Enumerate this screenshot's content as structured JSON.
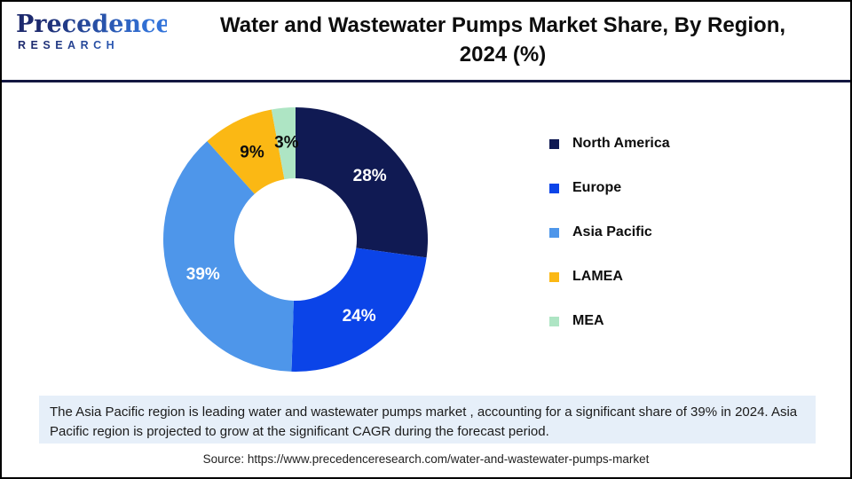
{
  "logo": {
    "name": "Precedence",
    "subname": "RESEARCH"
  },
  "header": {
    "title_lines": {
      "0": "Water and Wastewater Pumps Market Share, By Region,",
      "1": "2024 (%)"
    }
  },
  "chart_data": {
    "type": "pie",
    "subtype": "donut",
    "title": "Water and Wastewater Pumps Market Share, By Region, 2024 (%)",
    "unit": "%",
    "start_angle_deg": 0,
    "direction": "clockwise",
    "legend_position": "right",
    "donut_hole_ratio": 0.46,
    "segments": [
      {
        "label": "North America",
        "value": 28,
        "display": "28%",
        "color": "#101A53",
        "label_color": "#ffffff"
      },
      {
        "label": "Europe",
        "value": 24,
        "display": "24%",
        "color": "#0B44E8",
        "label_color": "#ffffff"
      },
      {
        "label": "Asia Pacific",
        "value": 39,
        "display": "39%",
        "color": "#4E96EA",
        "label_color": "#ffffff"
      },
      {
        "label": "LAMEA",
        "value": 9,
        "display": "9%",
        "color": "#FBB814",
        "label_color": "#0d0d0d"
      },
      {
        "label": "MEA",
        "value": 3,
        "display": "3%",
        "color": "#AEE5C4",
        "label_color": "#0d0d0d"
      }
    ]
  },
  "note": {
    "text": "The Asia Pacific region is leading water and wastewater pumps market , accounting for a significant share of 39% in 2024. Asia Pacific region is projected to grow at the significant CAGR during the forecast period."
  },
  "source": {
    "text": "Source: https://www.precedenceresearch.com/water-and-wastewater-pumps-market"
  },
  "colors": {
    "divider": "#131741",
    "note_background": "#E6EFF9",
    "frame_border": "#000000"
  }
}
